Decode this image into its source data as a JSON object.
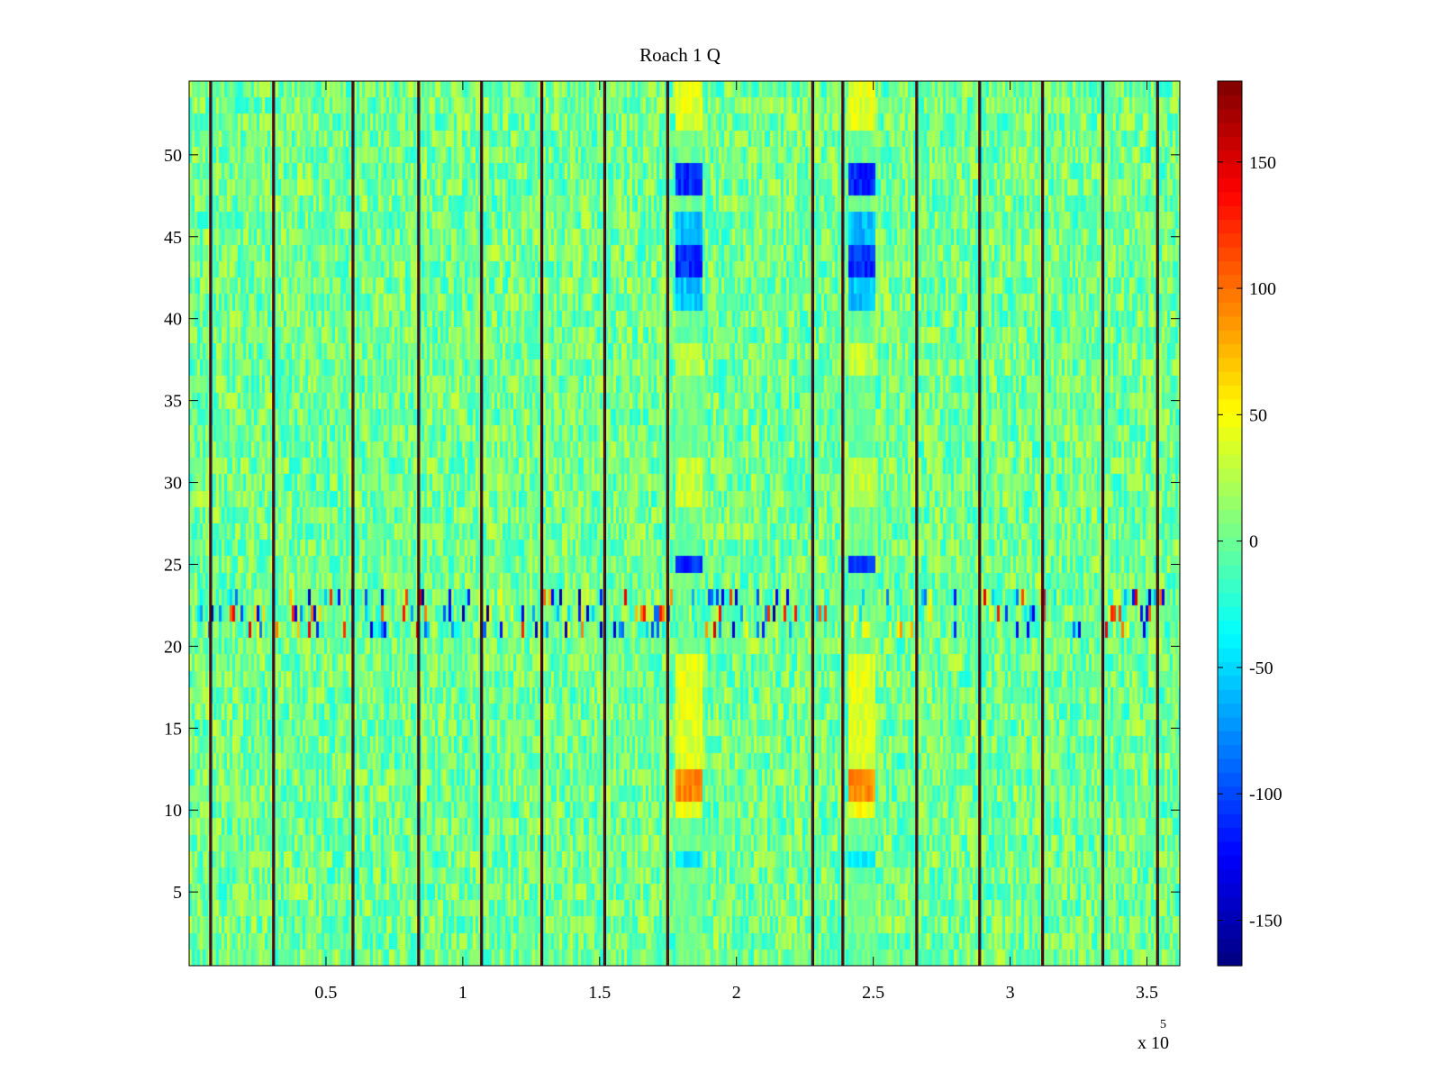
{
  "chart_data": {
    "type": "heatmap",
    "title": "Roach 1 Q",
    "xlabel": "",
    "ylabel": "",
    "x_multiplier": {
      "base": "x 10",
      "exponent": "5"
    },
    "xlim": [
      0,
      362000
    ],
    "ylim": [
      0.5,
      54.5
    ],
    "x_ticks": [
      50000,
      100000,
      150000,
      200000,
      250000,
      300000,
      350000
    ],
    "x_tick_labels": [
      "0.5",
      "1",
      "1.5",
      "2",
      "2.5",
      "3",
      "3.5"
    ],
    "y_ticks": [
      5,
      10,
      15,
      20,
      25,
      30,
      35,
      40,
      45,
      50
    ],
    "y_tick_labels": [
      "5",
      "10",
      "15",
      "20",
      "25",
      "30",
      "35",
      "40",
      "45",
      "50"
    ],
    "rows": 54,
    "color_limits": [
      -168,
      182
    ],
    "colormap": "jet",
    "colorbar_ticks": [
      -150,
      -100,
      -50,
      0,
      50,
      100,
      150
    ],
    "colorbar_tick_labels": [
      "-150",
      "-100",
      "-50",
      "0",
      "50",
      "100",
      "150"
    ],
    "background_value_range": [
      -30,
      35
    ],
    "vertical_line_x": [
      8000,
      31000,
      60000,
      84000,
      107000,
      129000,
      152000,
      175000,
      228000,
      239000,
      266000,
      289000,
      312000,
      334000,
      354000
    ],
    "noisy_row_band": {
      "rows": [
        21,
        23
      ],
      "value_range": [
        -160,
        150
      ]
    },
    "feature_columns": [
      {
        "x_range": [
          178000,
          188000
        ],
        "blocks": [
          {
            "rows": [
              52,
              54
            ],
            "value": 40
          },
          {
            "rows": [
              48,
              49
            ],
            "value": -110
          },
          {
            "rows": [
              45,
              46
            ],
            "value": -60
          },
          {
            "rows": [
              43,
              44
            ],
            "value": -110
          },
          {
            "rows": [
              41,
              42
            ],
            "value": -55
          },
          {
            "rows": [
              37,
              38
            ],
            "value": 30
          },
          {
            "rows": [
              29,
              31
            ],
            "value": 30
          },
          {
            "rows": [
              25,
              25
            ],
            "value": -110
          },
          {
            "rows": [
              13,
              19
            ],
            "value": 40
          },
          {
            "rows": [
              11,
              12
            ],
            "value": 90
          },
          {
            "rows": [
              10,
              10
            ],
            "value": 45
          },
          {
            "rows": [
              7,
              7
            ],
            "value": -40
          }
        ]
      },
      {
        "x_range": [
          241000,
          251000
        ],
        "blocks": [
          {
            "rows": [
              52,
              54
            ],
            "value": 40
          },
          {
            "rows": [
              48,
              49
            ],
            "value": -110
          },
          {
            "rows": [
              45,
              46
            ],
            "value": -60
          },
          {
            "rows": [
              43,
              44
            ],
            "value": -110
          },
          {
            "rows": [
              41,
              42
            ],
            "value": -55
          },
          {
            "rows": [
              37,
              38
            ],
            "value": 30
          },
          {
            "rows": [
              29,
              31
            ],
            "value": 30
          },
          {
            "rows": [
              25,
              25
            ],
            "value": -110
          },
          {
            "rows": [
              13,
              19
            ],
            "value": 40
          },
          {
            "rows": [
              11,
              12
            ],
            "value": 90
          },
          {
            "rows": [
              10,
              10
            ],
            "value": 45
          },
          {
            "rows": [
              7,
              7
            ],
            "value": -40
          }
        ]
      }
    ]
  }
}
